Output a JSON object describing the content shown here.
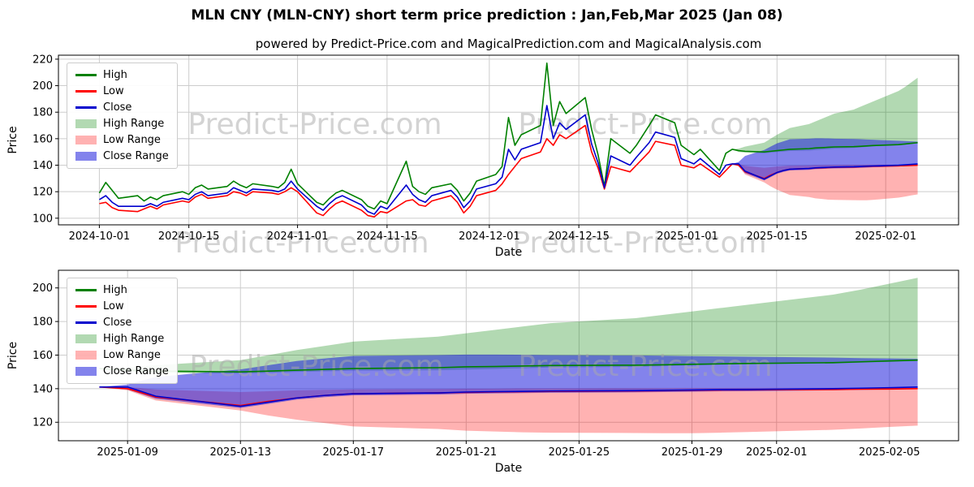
{
  "page": {
    "title": "MLN CNY (MLN-CNY) short term price prediction : Jan,Feb,Mar 2025 (Jan 08)",
    "subtitle": "powered by Predict-Price.com and MagicalPrediction.com and MagicalAnalysis.com",
    "watermark": "Predict-Price.com"
  },
  "legend": [
    "High",
    "Low",
    "Close",
    "High Range",
    "Low Range",
    "Close Range"
  ],
  "colors": {
    "high": "#008000",
    "low": "#ff0000",
    "close": "#0000cd",
    "high_range_fill": "rgba(0,128,0,0.30)",
    "low_range_fill": "rgba(255,0,0,0.30)",
    "close_range_fill": "rgba(30,30,220,0.55)",
    "grid": "#cccccc",
    "watermark_gray": "#a9a9a9"
  },
  "chart_data": [
    {
      "type": "line",
      "name": "history-and-forecast",
      "xlabel": "Date",
      "ylabel": "Price",
      "ylim": [
        95,
        223
      ],
      "yticks": [
        100,
        120,
        140,
        160,
        180,
        200,
        220
      ],
      "xticks": [
        "2024-10-01",
        "2024-10-15",
        "2024-11-01",
        "2024-11-15",
        "2024-12-01",
        "2024-12-15",
        "2025-01-01",
        "2025-01-15",
        "2025-02-01"
      ],
      "grid": true,
      "legend_position": "upper left",
      "history": {
        "dates": [
          "2024-10-01",
          "2024-10-02",
          "2024-10-03",
          "2024-10-04",
          "2024-10-07",
          "2024-10-08",
          "2024-10-09",
          "2024-10-10",
          "2024-10-11",
          "2024-10-14",
          "2024-10-15",
          "2024-10-16",
          "2024-10-17",
          "2024-10-18",
          "2024-10-21",
          "2024-10-22",
          "2024-10-23",
          "2024-10-24",
          "2024-10-25",
          "2024-10-28",
          "2024-10-29",
          "2024-10-30",
          "2024-10-31",
          "2024-11-01",
          "2024-11-04",
          "2024-11-05",
          "2024-11-06",
          "2024-11-07",
          "2024-11-08",
          "2024-11-11",
          "2024-11-12",
          "2024-11-13",
          "2024-11-14",
          "2024-11-15",
          "2024-11-18",
          "2024-11-19",
          "2024-11-20",
          "2024-11-21",
          "2024-11-22",
          "2024-11-25",
          "2024-11-26",
          "2024-11-27",
          "2024-11-28",
          "2024-11-29",
          "2024-12-02",
          "2024-12-03",
          "2024-12-04",
          "2024-12-05",
          "2024-12-06",
          "2024-12-09",
          "2024-12-10",
          "2024-12-11",
          "2024-12-12",
          "2024-12-13",
          "2024-12-16",
          "2024-12-17",
          "2024-12-18",
          "2024-12-19",
          "2024-12-20",
          "2024-12-23",
          "2024-12-24",
          "2024-12-26",
          "2024-12-27",
          "2024-12-30",
          "2024-12-31",
          "2025-01-02",
          "2025-01-03",
          "2025-01-06",
          "2025-01-07",
          "2025-01-08"
        ],
        "high": [
          119,
          127,
          121,
          115,
          117,
          113,
          116,
          114,
          117,
          120,
          118,
          123,
          125,
          122,
          124,
          128,
          125,
          123,
          126,
          124,
          123,
          127,
          137,
          126,
          112,
          110,
          115,
          119,
          121,
          114,
          109,
          107,
          113,
          111,
          143,
          124,
          120,
          118,
          123,
          126,
          121,
          113,
          119,
          128,
          133,
          139,
          176,
          155,
          163,
          170,
          217,
          170,
          188,
          179,
          191,
          167,
          148,
          124,
          160,
          149,
          155,
          170,
          178,
          172,
          155,
          148,
          152,
          136,
          149,
          152
        ],
        "low": [
          111,
          112,
          108,
          106,
          105,
          107,
          109,
          107,
          110,
          113,
          112,
          116,
          118,
          115,
          117,
          120,
          119,
          117,
          120,
          119,
          118,
          120,
          123,
          120,
          104,
          102,
          107,
          111,
          113,
          106,
          102,
          101,
          105,
          104,
          113,
          114,
          110,
          109,
          113,
          117,
          112,
          104,
          109,
          117,
          121,
          126,
          133,
          139,
          145,
          150,
          160,
          155,
          163,
          160,
          170,
          150,
          138,
          122,
          139,
          135,
          140,
          150,
          158,
          155,
          140,
          138,
          141,
          131,
          136,
          141
        ],
        "close": [
          114,
          117,
          112,
          109,
          109,
          109,
          111,
          109,
          112,
          115,
          114,
          118,
          120,
          117,
          119,
          123,
          121,
          119,
          122,
          121,
          120,
          122,
          128,
          122,
          109,
          106,
          111,
          115,
          117,
          110,
          105,
          103,
          109,
          107,
          125,
          118,
          114,
          112,
          117,
          121,
          116,
          108,
          113,
          122,
          126,
          131,
          152,
          144,
          152,
          157,
          185,
          160,
          172,
          167,
          178,
          156,
          142,
          123,
          147,
          140,
          146,
          157,
          165,
          161,
          145,
          141,
          145,
          133,
          140,
          141
        ]
      },
      "forecast": {
        "dates": [
          "2025-01-08",
          "2025-01-09",
          "2025-01-10",
          "2025-01-13",
          "2025-01-14",
          "2025-01-15",
          "2025-01-16",
          "2025-01-17",
          "2025-01-20",
          "2025-01-21",
          "2025-01-22",
          "2025-01-23",
          "2025-01-24",
          "2025-01-27",
          "2025-01-28",
          "2025-01-29",
          "2025-01-30",
          "2025-01-31",
          "2025-02-03",
          "2025-02-04",
          "2025-02-05",
          "2025-02-06"
        ],
        "high": [
          152,
          151,
          150.5,
          150,
          150.5,
          151,
          151.5,
          152,
          152.5,
          153,
          153.2,
          153.5,
          153.8,
          154,
          154.2,
          154.5,
          154.8,
          155,
          155.5,
          156,
          156.5,
          157
        ],
        "low": [
          141,
          140,
          135,
          130,
          132.5,
          134.5,
          136,
          137,
          137.5,
          137.8,
          138,
          138.2,
          138.4,
          138.6,
          138.8,
          139,
          139.2,
          139.3,
          139.5,
          139.7,
          139.8,
          140
        ],
        "close": [
          141,
          141,
          135.5,
          129.5,
          132,
          134.5,
          136,
          137,
          137.5,
          138,
          138.2,
          138.4,
          138.6,
          138.8,
          139,
          139.2,
          139.4,
          139.5,
          140,
          140.3,
          140.6,
          141
        ],
        "high_range": {
          "upper": [
            152,
            152.5,
            154,
            157,
            160,
            163,
            165.5,
            168,
            171,
            173,
            175,
            177,
            179,
            182,
            184,
            186,
            188,
            190,
            196,
            199,
            202.5,
            206
          ],
          "lower": [
            152,
            150,
            149.5,
            149,
            149.5,
            150,
            150.3,
            150.7,
            151,
            151.4,
            151.8,
            152.2,
            152.6,
            153,
            153.4,
            153.8,
            154.2,
            154.6,
            155,
            155.5,
            156,
            156.5
          ]
        },
        "low_range": {
          "upper": [
            141,
            141,
            139.5,
            138,
            138.5,
            139,
            139.3,
            139.6,
            139.8,
            140,
            140,
            140.2,
            140.2,
            140.3,
            140.3,
            140.4,
            140.4,
            140.5,
            140.5,
            140.5,
            140.5,
            140.5
          ],
          "lower": [
            141,
            139,
            133,
            127,
            124,
            121.5,
            119.5,
            117.5,
            116,
            115,
            114.5,
            114,
            113.8,
            113.6,
            113.5,
            113.5,
            113.8,
            114.2,
            115.5,
            116.3,
            117.2,
            118
          ]
        },
        "close_range": {
          "upper": [
            141,
            142.5,
            147,
            151.5,
            154,
            156.5,
            158,
            159.5,
            160,
            160.3,
            160.3,
            160.2,
            160,
            159.8,
            159.6,
            159.4,
            159.2,
            159,
            158.5,
            158.2,
            158,
            157.8
          ],
          "lower": [
            141,
            139.5,
            134,
            128.5,
            131,
            133.5,
            135,
            136,
            136.5,
            137,
            137.2,
            137.4,
            137.6,
            137.8,
            138,
            138.2,
            138.4,
            138.5,
            139,
            139.3,
            139.6,
            140
          ]
        }
      }
    },
    {
      "type": "line",
      "name": "forecast-zoom",
      "xlabel": "Date",
      "ylabel": "Price",
      "ylim": [
        109,
        210.5
      ],
      "yticks": [
        120,
        140,
        160,
        180,
        200
      ],
      "xticks": [
        "2025-01-09",
        "2025-01-13",
        "2025-01-17",
        "2025-01-21",
        "2025-01-25",
        "2025-01-29",
        "2025-02-01",
        "2025-02-05"
      ],
      "grid": true,
      "legend_position": "upper left",
      "forecast": {
        "dates": [
          "2025-01-08",
          "2025-01-09",
          "2025-01-10",
          "2025-01-13",
          "2025-01-14",
          "2025-01-15",
          "2025-01-16",
          "2025-01-17",
          "2025-01-20",
          "2025-01-21",
          "2025-01-22",
          "2025-01-23",
          "2025-01-24",
          "2025-01-27",
          "2025-01-28",
          "2025-01-29",
          "2025-01-30",
          "2025-01-31",
          "2025-02-03",
          "2025-02-04",
          "2025-02-05",
          "2025-02-06"
        ],
        "high": [
          152,
          151,
          150.5,
          150,
          150.5,
          151,
          151.5,
          152,
          152.5,
          153,
          153.2,
          153.5,
          153.8,
          154,
          154.2,
          154.5,
          154.8,
          155,
          155.5,
          156,
          156.5,
          157
        ],
        "low": [
          141,
          140,
          135,
          130,
          132.5,
          134.5,
          136,
          137,
          137.5,
          137.8,
          138,
          138.2,
          138.4,
          138.6,
          138.8,
          139,
          139.2,
          139.3,
          139.5,
          139.7,
          139.8,
          140
        ],
        "close": [
          141,
          141,
          135.5,
          129.5,
          132,
          134.5,
          136,
          137,
          137.5,
          138,
          138.2,
          138.4,
          138.6,
          138.8,
          139,
          139.2,
          139.4,
          139.5,
          140,
          140.3,
          140.6,
          141
        ],
        "high_range": {
          "upper": [
            152,
            152.5,
            154,
            157,
            160,
            163,
            165.5,
            168,
            171,
            173,
            175,
            177,
            179,
            182,
            184,
            186,
            188,
            190,
            196,
            199,
            202.5,
            206
          ],
          "lower": [
            152,
            150,
            149.5,
            149,
            149.5,
            150,
            150.3,
            150.7,
            151,
            151.4,
            151.8,
            152.2,
            152.6,
            153,
            153.4,
            153.8,
            154.2,
            154.6,
            155,
            155.5,
            156,
            156.5
          ]
        },
        "low_range": {
          "upper": [
            141,
            141,
            139.5,
            138,
            138.5,
            139,
            139.3,
            139.6,
            139.8,
            140,
            140,
            140.2,
            140.2,
            140.3,
            140.3,
            140.4,
            140.4,
            140.5,
            140.5,
            140.5,
            140.5,
            140.5
          ],
          "lower": [
            141,
            139,
            133,
            127,
            124,
            121.5,
            119.5,
            117.5,
            116,
            115,
            114.5,
            114,
            113.8,
            113.6,
            113.5,
            113.5,
            113.8,
            114.2,
            115.5,
            116.3,
            117.2,
            118
          ]
        },
        "close_range": {
          "upper": [
            141,
            142.5,
            147,
            151.5,
            154,
            156.5,
            158,
            159.5,
            160,
            160.3,
            160.3,
            160.2,
            160,
            159.8,
            159.6,
            159.4,
            159.2,
            159,
            158.5,
            158.2,
            158,
            157.8
          ],
          "lower": [
            141,
            139.5,
            134,
            128.5,
            131,
            133.5,
            135,
            136,
            136.5,
            137,
            137.2,
            137.4,
            137.6,
            137.8,
            138,
            138.2,
            138.4,
            138.5,
            139,
            139.3,
            139.6,
            140
          ]
        }
      }
    }
  ]
}
